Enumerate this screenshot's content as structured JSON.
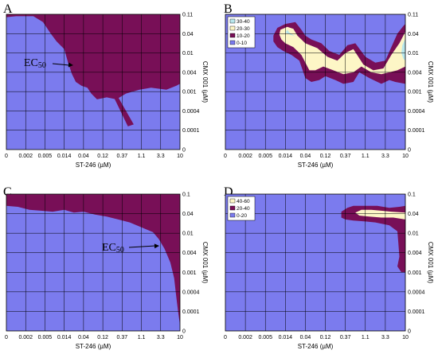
{
  "colors": {
    "band_0": "#7b7bee",
    "band_1": "#780f57",
    "band_2": "#fdf6c6",
    "band_3": "#b8e6ec",
    "grid": "#000000",
    "arrow": "#000000"
  },
  "chart_data": [
    {
      "id": "A",
      "type": "heatmap",
      "panel_label": "A",
      "xlabel": "ST-246 (µM)",
      "ylabel": "CMX 001 (µM)",
      "x_ticks": [
        "0",
        "0.002",
        "0.005",
        "0.014",
        "0.04",
        "0.12",
        "0.37",
        "1.1",
        "3.3",
        "10"
      ],
      "y_ticks": [
        "0",
        "0.0001",
        "0.0004",
        "0.001",
        "0.004",
        "0.01",
        "0.04",
        "0.11"
      ],
      "grid": true,
      "legend": [],
      "annotation": {
        "text": "EC",
        "subscript": "50"
      },
      "background_band": 0,
      "regions": [
        {
          "band": 1,
          "points": [
            [
              0,
              7
            ],
            [
              0,
              6.85
            ],
            [
              0.5,
              6.9
            ],
            [
              1.4,
              6.9
            ],
            [
              1.9,
              6.6
            ],
            [
              2.3,
              6.0
            ],
            [
              2.6,
              5.6
            ],
            [
              3.0,
              5.2
            ],
            [
              3.2,
              4.5
            ],
            [
              3.4,
              3.9
            ],
            [
              3.6,
              3.5
            ],
            [
              3.9,
              3.3
            ],
            [
              4.2,
              3.2
            ],
            [
              4.4,
              2.9
            ],
            [
              4.7,
              2.6
            ],
            [
              5.2,
              2.7
            ],
            [
              5.7,
              2.6
            ],
            [
              6.2,
              2.9
            ],
            [
              6.9,
              3.1
            ],
            [
              7.5,
              3.2
            ],
            [
              8.3,
              3.1
            ],
            [
              8.8,
              3.3
            ],
            [
              9,
              3.4
            ],
            [
              9,
              7
            ]
          ]
        },
        {
          "band": 1,
          "points": [
            [
              5.6,
              2.65
            ],
            [
              5.8,
              2.7
            ],
            [
              6.6,
              1.3
            ],
            [
              6.3,
              1.2
            ]
          ]
        }
      ]
    },
    {
      "id": "B",
      "type": "heatmap",
      "panel_label": "B",
      "xlabel": "ST-246 (µM)",
      "ylabel": "CMX 001 (µM)",
      "x_ticks": [
        "0",
        "0.002",
        "0.005",
        "0.014",
        "0.04",
        "0.12",
        "0.37",
        "1.1",
        "3.3",
        "10"
      ],
      "y_ticks": [
        "0",
        "0.0001",
        "0.0004",
        "0.001",
        "0.004",
        "0.01",
        "0.04",
        "0.11"
      ],
      "grid": true,
      "legend": [
        {
          "label": "30-40",
          "band": 3
        },
        {
          "label": "20-30",
          "band": 2
        },
        {
          "label": "10-20",
          "band": 1
        },
        {
          "label": "0-10",
          "band": 0
        }
      ],
      "background_band": 0,
      "regions": [
        {
          "band": 1,
          "points": [
            [
              2.6,
              6.3
            ],
            [
              3.0,
              6.5
            ],
            [
              3.5,
              6.6
            ],
            [
              3.8,
              6.2
            ],
            [
              4.0,
              5.9
            ],
            [
              4.3,
              5.7
            ],
            [
              4.8,
              5.5
            ],
            [
              5.2,
              5.1
            ],
            [
              5.7,
              4.9
            ],
            [
              6.1,
              5.4
            ],
            [
              6.5,
              5.5
            ],
            [
              7.0,
              4.8
            ],
            [
              7.5,
              4.5
            ],
            [
              8.0,
              4.6
            ],
            [
              8.3,
              5.3
            ],
            [
              8.6,
              6.0
            ],
            [
              8.9,
              6.4
            ],
            [
              9,
              6.5
            ],
            [
              9,
              3.4
            ],
            [
              8.5,
              3.5
            ],
            [
              8.2,
              3.6
            ],
            [
              7.8,
              3.4
            ],
            [
              7.2,
              3.7
            ],
            [
              6.7,
              4.0
            ],
            [
              6.4,
              3.5
            ],
            [
              5.9,
              3.4
            ],
            [
              5.5,
              3.6
            ],
            [
              5.0,
              3.8
            ],
            [
              4.7,
              3.6
            ],
            [
              4.3,
              3.5
            ],
            [
              4.0,
              3.7
            ],
            [
              3.7,
              4.6
            ],
            [
              3.3,
              4.9
            ],
            [
              2.9,
              5.1
            ],
            [
              2.6,
              5.3
            ],
            [
              2.4,
              5.6
            ],
            [
              2.4,
              5.9
            ]
          ]
        },
        {
          "band": 2,
          "points": [
            [
              2.75,
              6.2
            ],
            [
              3.1,
              6.35
            ],
            [
              3.4,
              6.25
            ],
            [
              3.6,
              5.9
            ],
            [
              4.0,
              5.5
            ],
            [
              4.6,
              5.25
            ],
            [
              5.1,
              4.8
            ],
            [
              5.6,
              4.6
            ],
            [
              6.0,
              5.0
            ],
            [
              6.4,
              5.2
            ],
            [
              6.9,
              4.4
            ],
            [
              7.4,
              4.1
            ],
            [
              7.9,
              4.2
            ],
            [
              8.3,
              4.9
            ],
            [
              8.7,
              5.5
            ],
            [
              9,
              6.1
            ],
            [
              9,
              4.3
            ],
            [
              8.6,
              4.1
            ],
            [
              8.2,
              4.0
            ],
            [
              7.8,
              3.9
            ],
            [
              7.3,
              4.0
            ],
            [
              6.8,
              4.3
            ],
            [
              6.4,
              4.0
            ],
            [
              5.9,
              3.9
            ],
            [
              5.4,
              4.1
            ],
            [
              4.9,
              4.3
            ],
            [
              4.5,
              4.1
            ],
            [
              4.2,
              4.1
            ],
            [
              3.8,
              4.9
            ],
            [
              3.4,
              5.3
            ],
            [
              3.0,
              5.5
            ],
            [
              2.8,
              5.7
            ],
            [
              2.7,
              5.95
            ]
          ]
        },
        {
          "band": 3,
          "points": [
            [
              3.0,
              6.05
            ],
            [
              3.1,
              6.2
            ],
            [
              3.2,
              6.05
            ],
            [
              3.5,
              5.85
            ],
            [
              3.25,
              5.95
            ]
          ]
        },
        {
          "band": 3,
          "points": [
            [
              9,
              5.75
            ],
            [
              8.85,
              5.4
            ],
            [
              8.8,
              5.0
            ],
            [
              8.9,
              4.7
            ],
            [
              9,
              4.6
            ]
          ]
        }
      ]
    },
    {
      "id": "C",
      "type": "heatmap",
      "panel_label": "C",
      "xlabel": "ST-246 (µM)",
      "ylabel": "CMX 001 (µM)",
      "x_ticks": [
        "0",
        "0.002",
        "0.005",
        "0.014",
        "0.04",
        "0.12",
        "0.37",
        "1.1",
        "3.3",
        "10"
      ],
      "y_ticks": [
        "0",
        "0.0001",
        "0.0004",
        "0.001",
        "0.004",
        "0.01",
        "0.04",
        "0.1"
      ],
      "grid": true,
      "legend": [],
      "annotation": {
        "text": "EC",
        "subscript": "50"
      },
      "background_band": 0,
      "regions": [
        {
          "band": 1,
          "points": [
            [
              0,
              7
            ],
            [
              0,
              6.4
            ],
            [
              0.6,
              6.35
            ],
            [
              1.2,
              6.2
            ],
            [
              1.8,
              6.15
            ],
            [
              2.4,
              6.1
            ],
            [
              3.0,
              6.2
            ],
            [
              3.5,
              6.05
            ],
            [
              4.0,
              6.1
            ],
            [
              4.6,
              5.95
            ],
            [
              5.2,
              5.85
            ],
            [
              5.8,
              5.7
            ],
            [
              6.4,
              5.55
            ],
            [
              7.0,
              5.3
            ],
            [
              7.6,
              5.05
            ],
            [
              7.9,
              4.7
            ],
            [
              8.2,
              4.2
            ],
            [
              8.5,
              3.5
            ],
            [
              8.7,
              2.7
            ],
            [
              8.8,
              1.8
            ],
            [
              8.9,
              1.0
            ],
            [
              9,
              0.3
            ],
            [
              9,
              7
            ]
          ]
        }
      ]
    },
    {
      "id": "D",
      "type": "heatmap",
      "panel_label": "D",
      "xlabel": "ST-246 (µM)",
      "ylabel": "CMX 001 (µM)",
      "x_ticks": [
        "0",
        "0.002",
        "0.005",
        "0.014",
        "0.04",
        "0.12",
        "0.37",
        "1.1",
        "3.3",
        "10"
      ],
      "y_ticks": [
        "0",
        "0.0001",
        "0.0004",
        "0.001",
        "0.004",
        "0.01",
        "0.04",
        "0.1"
      ],
      "grid": true,
      "legend": [
        {
          "label": "40-60",
          "band": 2
        },
        {
          "label": "20-40",
          "band": 1
        },
        {
          "label": "0-20",
          "band": 0
        }
      ],
      "background_band": 0,
      "regions": [
        {
          "band": 1,
          "points": [
            [
              5.8,
              6.1
            ],
            [
              6.1,
              6.3
            ],
            [
              6.4,
              6.4
            ],
            [
              7.0,
              6.4
            ],
            [
              7.6,
              6.4
            ],
            [
              8.2,
              6.3
            ],
            [
              8.7,
              6.35
            ],
            [
              9,
              6.4
            ],
            [
              9,
              3.0
            ],
            [
              8.8,
              3.0
            ],
            [
              8.6,
              3.3
            ],
            [
              8.7,
              3.8
            ],
            [
              8.65,
              4.5
            ],
            [
              8.6,
              5.1
            ],
            [
              8.2,
              5.4
            ],
            [
              7.5,
              5.55
            ],
            [
              7.0,
              5.6
            ],
            [
              6.4,
              5.65
            ],
            [
              6.0,
              5.7
            ],
            [
              5.8,
              5.8
            ]
          ]
        },
        {
          "band": 2,
          "points": [
            [
              6.5,
              6.05
            ],
            [
              6.8,
              6.2
            ],
            [
              7.3,
              6.2
            ],
            [
              7.8,
              6.15
            ],
            [
              8.3,
              6.1
            ],
            [
              9,
              6.05
            ],
            [
              9,
              5.7
            ],
            [
              8.4,
              5.8
            ],
            [
              7.8,
              5.8
            ],
            [
              7.2,
              5.85
            ],
            [
              6.7,
              5.9
            ]
          ]
        }
      ]
    }
  ]
}
